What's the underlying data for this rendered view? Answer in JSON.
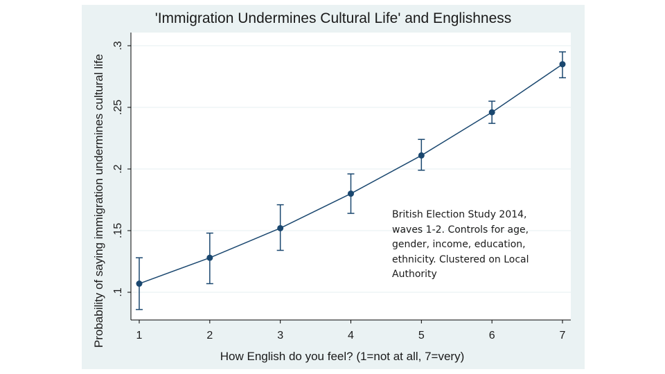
{
  "chart_data": {
    "type": "line",
    "title": "'Immigration Undermines Cultural Life' and Englishness",
    "xlabel": "How English do you feel? (1=not at all, 7=very)",
    "ylabel": "Probability of saying immigration undermines cultural life",
    "x": [
      1,
      2,
      3,
      4,
      5,
      6,
      7
    ],
    "y": [
      0.107,
      0.128,
      0.152,
      0.18,
      0.211,
      0.246,
      0.285
    ],
    "ci_lower": [
      0.086,
      0.107,
      0.134,
      0.164,
      0.199,
      0.237,
      0.274
    ],
    "ci_upper": [
      0.128,
      0.148,
      0.171,
      0.196,
      0.224,
      0.255,
      0.295
    ],
    "x_ticks": [
      "1",
      "2",
      "3",
      "4",
      "5",
      "6",
      "7"
    ],
    "y_ticks": [
      0.1,
      0.15,
      0.2,
      0.25,
      0.3
    ],
    "y_tick_labels": [
      ".1",
      ".15",
      ".2",
      ".25",
      ".3"
    ],
    "xlim": [
      1,
      7
    ],
    "ylim": [
      0.08,
      0.3
    ],
    "grid": true,
    "annotation": "British Election Study 2014, waves 1-2. Controls for age, gender, income, education, ethnicity. Clustered on Local Authority",
    "colors": {
      "background": "#eaf2f3",
      "plot_area": "#ffffff",
      "series": "#1a476f",
      "grid": "#eaf2f3"
    }
  }
}
